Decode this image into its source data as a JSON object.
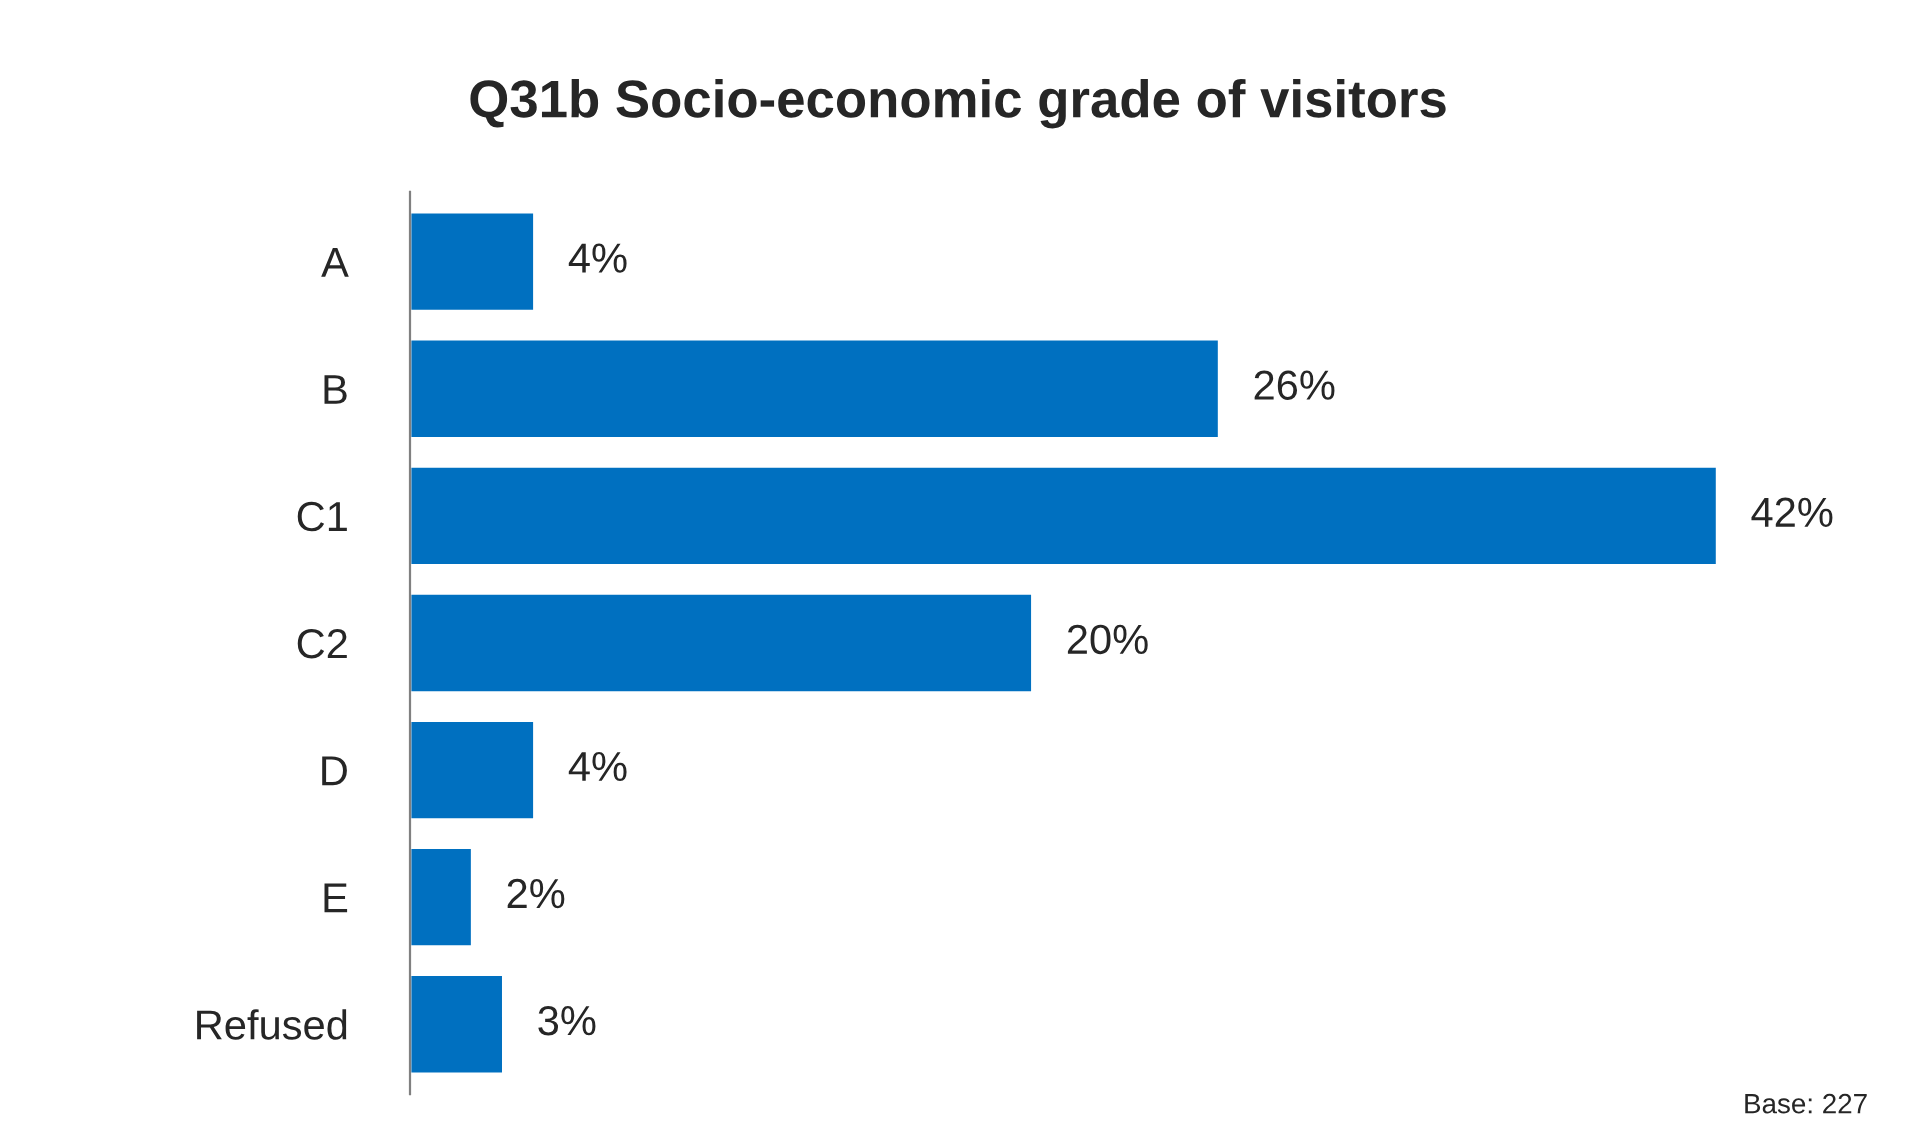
{
  "chart_data": {
    "type": "bar",
    "orientation": "horizontal",
    "title": "Q31b Socio-economic grade of visitors",
    "categories": [
      "A",
      "B",
      "C1",
      "C2",
      "D",
      "E",
      "Refused"
    ],
    "values": [
      4,
      26,
      42,
      20,
      4,
      2,
      3
    ],
    "value_labels": [
      "4%",
      "26%",
      "42%",
      "20%",
      "4%",
      "2%",
      "3%"
    ],
    "color": "#0070c0",
    "grid": false,
    "legend": false,
    "tick_labels": "y",
    "annotations": [
      "Base: 227"
    ]
  }
}
